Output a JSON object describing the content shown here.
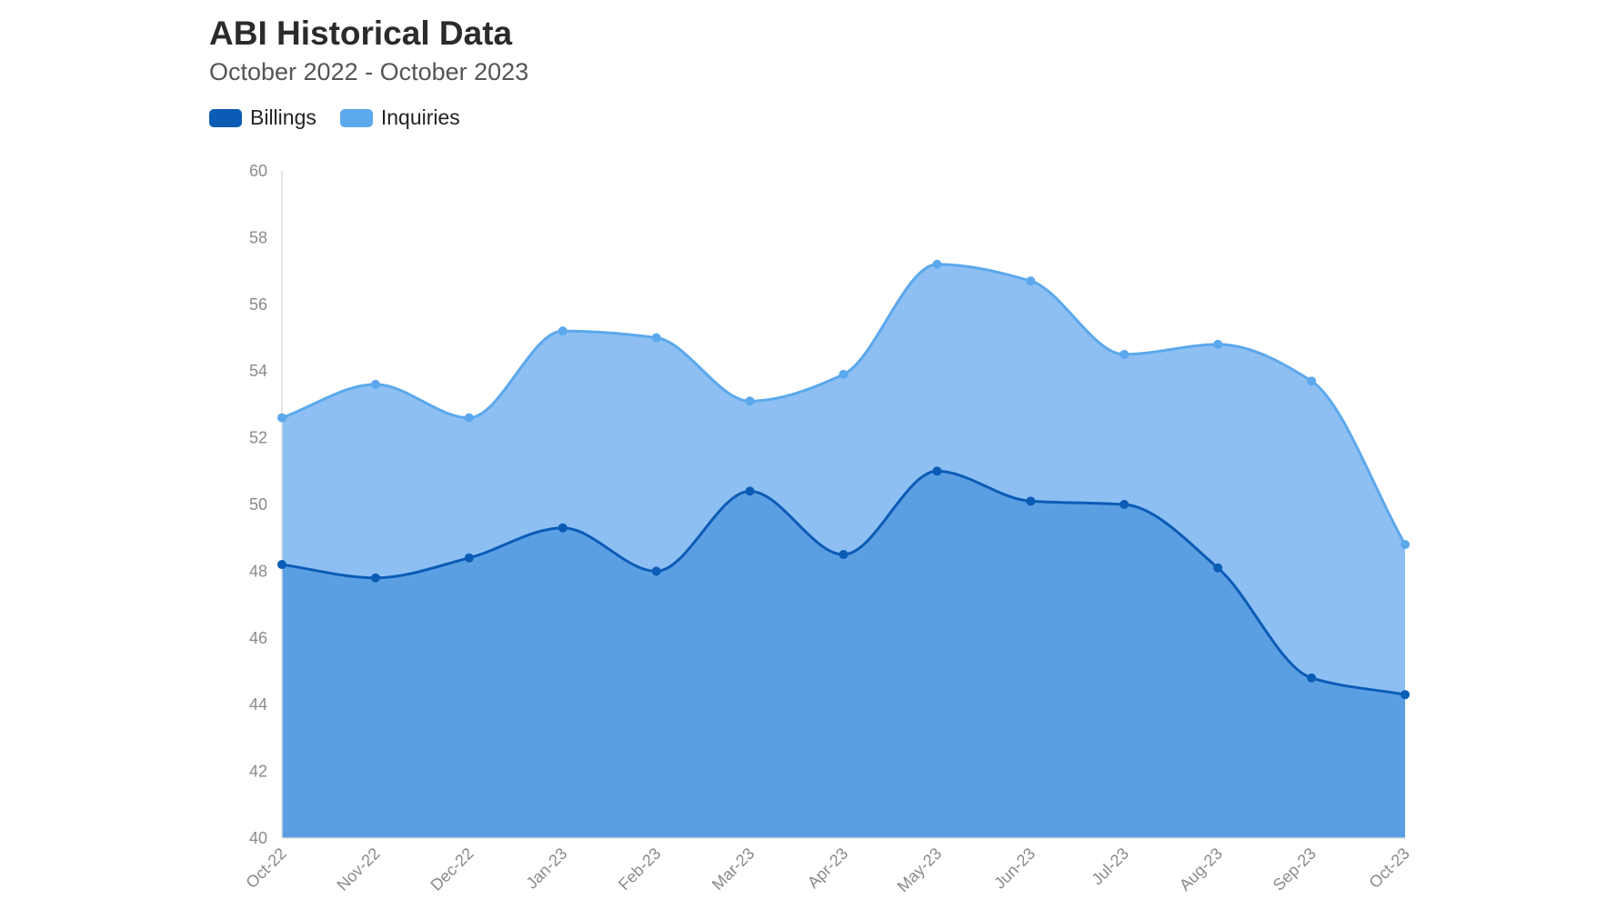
{
  "header": {
    "title": "ABI Historical Data",
    "subtitle": "October 2022 - October 2023"
  },
  "legend": {
    "items": [
      {
        "label": "Billings",
        "color": "#0b5cb5"
      },
      {
        "label": "Inquiries",
        "color": "#5ba8ec"
      }
    ]
  },
  "colors": {
    "billings_line": "#0b5cb5",
    "billings_fill": "#5b9fe3",
    "inquiries_line": "#5ba8ec",
    "inquiries_fill": "#8dbff3",
    "axis": "#dddddd"
  },
  "chart_data": {
    "type": "area",
    "title": "ABI Historical Data",
    "subtitle": "October 2022 - October 2023",
    "xlabel": "",
    "ylabel": "",
    "categories": [
      "Oct-22",
      "Nov-22",
      "Dec-22",
      "Jan-23",
      "Feb-23",
      "Mar-23",
      "Apr-23",
      "May-23",
      "Jun-23",
      "Jul-23",
      "Aug-23",
      "Sep-23",
      "Oct-23"
    ],
    "series": [
      {
        "name": "Inquiries",
        "values": [
          52.6,
          53.6,
          52.6,
          55.2,
          55.0,
          53.1,
          53.9,
          57.2,
          56.7,
          54.5,
          54.8,
          53.7,
          48.8
        ]
      },
      {
        "name": "Billings",
        "values": [
          48.2,
          47.8,
          48.4,
          49.3,
          48.0,
          50.4,
          48.5,
          51.0,
          50.1,
          50.0,
          48.1,
          44.8,
          44.3
        ]
      }
    ],
    "ylim": [
      40,
      60
    ],
    "yticks": [
      "40",
      "42",
      "44",
      "46",
      "48",
      "50",
      "52",
      "54",
      "56",
      "58",
      "60"
    ],
    "grid": false,
    "legend_position": "top-left"
  }
}
